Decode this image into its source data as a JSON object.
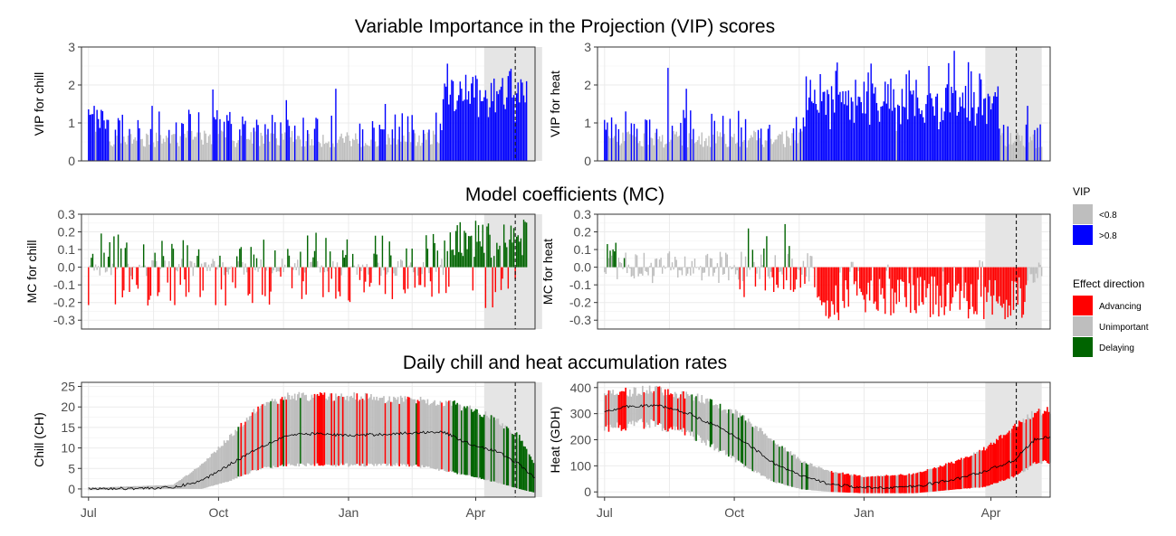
{
  "titles": {
    "vip": "Variable Importance in the Projection (VIP) scores",
    "mc": "Model coefficients (MC)",
    "rates": "Daily chill and heat accumulation rates"
  },
  "legend": {
    "vip_title": "VIP",
    "vip_items": [
      {
        "label": "<0.8",
        "color": "#bebebe"
      },
      {
        "label": ">0.8",
        "color": "#0000ff"
      }
    ],
    "effect_title": "Effect direction",
    "effect_items": [
      {
        "label": "Advancing",
        "color": "#ff0000"
      },
      {
        "label": "Unimportant",
        "color": "#bebebe"
      },
      {
        "label": "Delaying",
        "color": "#006400"
      }
    ]
  },
  "chart_data": [
    {
      "type": "bar",
      "panel": "vip-chill",
      "ylabel": "VIP for chill",
      "ylim": [
        0,
        3
      ],
      "yticks": [
        0,
        1,
        2,
        3
      ],
      "x_range_days": [
        -5,
        316
      ],
      "shaded_range_days": [
        280,
        321
      ],
      "dashed_line_day": 302,
      "threshold": 0.8,
      "note": "Daily bars from Jul 1 to mid-May; blue above 0.8, grey below; values estimated at key peaks",
      "peaks": [
        {
          "day": 4,
          "value": 1.45
        },
        {
          "day": 45,
          "value": 1.45
        },
        {
          "day": 88,
          "value": 1.88
        },
        {
          "day": 140,
          "value": 1.6
        },
        {
          "day": 175,
          "value": 1.9
        },
        {
          "day": 210,
          "value": 1.5
        },
        {
          "day": 258,
          "value": 2.1
        },
        {
          "day": 274,
          "value": 2.25
        },
        {
          "day": 306,
          "value": 2.15
        }
      ]
    },
    {
      "type": "bar",
      "panel": "vip-heat",
      "ylabel": "VIP for heat",
      "ylim": [
        0,
        3
      ],
      "yticks": [
        0,
        1,
        2,
        3
      ],
      "x_range_days": [
        -5,
        316
      ],
      "shaded_range_days": [
        270,
        310
      ],
      "dashed_line_day": 292,
      "threshold": 0.8,
      "peaks": [
        {
          "day": 45,
          "value": 2.45
        },
        {
          "day": 58,
          "value": 1.9
        },
        {
          "day": 150,
          "value": 1.5
        },
        {
          "day": 230,
          "value": 2.5
        },
        {
          "day": 248,
          "value": 2.9
        },
        {
          "day": 258,
          "value": 2.6
        },
        {
          "day": 266,
          "value": 2.3
        },
        {
          "day": 300,
          "value": 1.45
        }
      ]
    },
    {
      "type": "bar",
      "panel": "mc-chill",
      "ylabel": "MC for chill",
      "ylim": [
        -0.35,
        0.3
      ],
      "yticks": [
        -0.3,
        -0.2,
        -0.1,
        0.0,
        0.1,
        0.2,
        0.3
      ],
      "shaded_range_days": [
        280,
        321
      ],
      "dashed_line_day": 302
    },
    {
      "type": "bar",
      "panel": "mc-heat",
      "ylabel": "MC for heat",
      "ylim": [
        -0.35,
        0.3
      ],
      "yticks": [
        -0.3,
        -0.2,
        -0.1,
        0.0,
        0.1,
        0.2,
        0.3
      ],
      "shaded_range_days": [
        270,
        310
      ],
      "dashed_line_day": 292
    },
    {
      "type": "area",
      "panel": "chill-rate",
      "ylabel": "Chill (CH)",
      "ylim": [
        -2,
        26
      ],
      "yticks": [
        0,
        5,
        10,
        15,
        20,
        25
      ],
      "xticks": [
        {
          "label": "Jul",
          "day": 0
        },
        {
          "label": "Oct",
          "day": 92
        },
        {
          "label": "Jan",
          "day": 184
        },
        {
          "label": "Apr",
          "day": 274
        }
      ],
      "shaded_range_days": [
        280,
        321
      ],
      "dashed_line_day": 302,
      "mean_curve": [
        [
          0,
          0
        ],
        [
          60,
          0.3
        ],
        [
          80,
          2
        ],
        [
          100,
          6
        ],
        [
          120,
          10
        ],
        [
          140,
          13
        ],
        [
          160,
          13.5
        ],
        [
          184,
          13
        ],
        [
          220,
          13.5
        ],
        [
          250,
          14
        ],
        [
          270,
          11
        ],
        [
          290,
          9
        ],
        [
          305,
          6
        ],
        [
          316,
          2.5
        ]
      ],
      "band_upper": [
        [
          0,
          0.3
        ],
        [
          60,
          1
        ],
        [
          80,
          6
        ],
        [
          100,
          13
        ],
        [
          120,
          20
        ],
        [
          140,
          23
        ],
        [
          184,
          23
        ],
        [
          230,
          22
        ],
        [
          260,
          21
        ],
        [
          285,
          18
        ],
        [
          305,
          13
        ],
        [
          316,
          6
        ]
      ],
      "band_lower": [
        [
          0,
          -0.3
        ],
        [
          60,
          0
        ],
        [
          80,
          0
        ],
        [
          100,
          2
        ],
        [
          120,
          5
        ],
        [
          140,
          6
        ],
        [
          184,
          6
        ],
        [
          230,
          6
        ],
        [
          260,
          4
        ],
        [
          285,
          2
        ],
        [
          305,
          0
        ],
        [
          316,
          -1
        ]
      ]
    },
    {
      "type": "area",
      "panel": "heat-rate",
      "ylabel": "Heat (GDH)",
      "ylim": [
        -20,
        420
      ],
      "yticks": [
        0,
        100,
        200,
        300,
        400
      ],
      "xticks": [
        {
          "label": "Jul",
          "day": 0
        },
        {
          "label": "Oct",
          "day": 92
        },
        {
          "label": "Jan",
          "day": 184
        },
        {
          "label": "Apr",
          "day": 274
        }
      ],
      "shaded_range_days": [
        270,
        310
      ],
      "dashed_line_day": 292,
      "mean_curve": [
        [
          0,
          310
        ],
        [
          20,
          330
        ],
        [
          40,
          330
        ],
        [
          60,
          300
        ],
        [
          80,
          250
        ],
        [
          100,
          190
        ],
        [
          120,
          110
        ],
        [
          140,
          60
        ],
        [
          160,
          30
        ],
        [
          184,
          15
        ],
        [
          220,
          20
        ],
        [
          250,
          50
        ],
        [
          270,
          80
        ],
        [
          290,
          120
        ],
        [
          305,
          200
        ],
        [
          316,
          210
        ]
      ],
      "band_upper": [
        [
          0,
          380
        ],
        [
          30,
          400
        ],
        [
          60,
          380
        ],
        [
          80,
          340
        ],
        [
          100,
          290
        ],
        [
          120,
          200
        ],
        [
          140,
          120
        ],
        [
          160,
          80
        ],
        [
          184,
          60
        ],
        [
          220,
          70
        ],
        [
          250,
          120
        ],
        [
          270,
          170
        ],
        [
          290,
          250
        ],
        [
          305,
          310
        ],
        [
          316,
          320
        ]
      ],
      "band_lower": [
        [
          0,
          250
        ],
        [
          30,
          270
        ],
        [
          60,
          230
        ],
        [
          80,
          170
        ],
        [
          100,
          100
        ],
        [
          120,
          40
        ],
        [
          140,
          10
        ],
        [
          160,
          0
        ],
        [
          184,
          -5
        ],
        [
          220,
          -5
        ],
        [
          250,
          10
        ],
        [
          270,
          20
        ],
        [
          290,
          60
        ],
        [
          305,
          110
        ],
        [
          316,
          120
        ]
      ]
    }
  ]
}
